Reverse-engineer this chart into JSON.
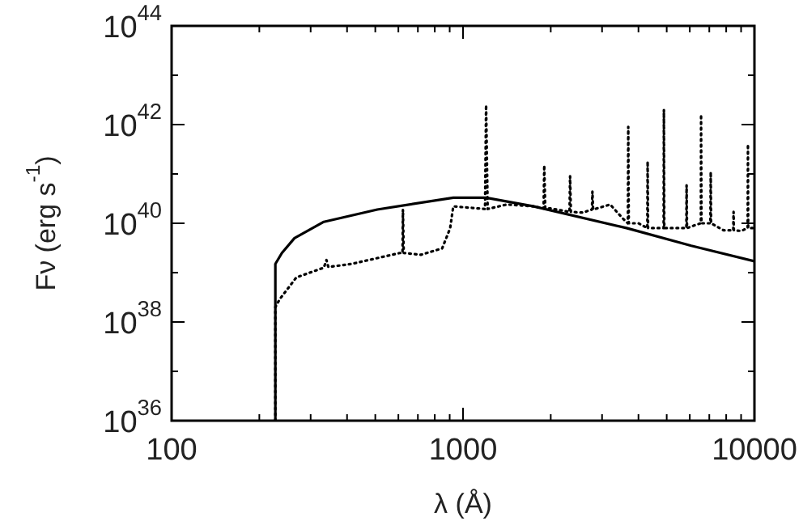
{
  "chart_data": {
    "type": "line",
    "xlabel": "λ (Å)",
    "ylabel": "Fν (erg s$^{-1}$)",
    "log": "xy",
    "marker": "none",
    "xlim": [
      100,
      10000
    ],
    "ylim": [
      1e+36,
      1e+44
    ],
    "xticks": [
      100,
      {
        "value": 200,
        "label": null
      },
      {
        "value": 300,
        "label": null
      },
      {
        "value": 400,
        "label": null
      },
      {
        "value": 500,
        "label": null
      },
      {
        "value": 600,
        "label": null
      },
      {
        "value": 700,
        "label": null
      },
      {
        "value": 800,
        "label": null
      },
      {
        "value": 900,
        "label": null
      },
      1000,
      {
        "value": 2000,
        "label": null
      },
      {
        "value": 3000,
        "label": null
      },
      {
        "value": 4000,
        "label": null
      },
      {
        "value": 5000,
        "label": null
      },
      {
        "value": 6000,
        "label": null
      },
      {
        "value": 7000,
        "label": null
      },
      {
        "value": 8000,
        "label": null
      },
      {
        "value": 9000,
        "label": null
      },
      10000
    ],
    "yticks": [
      {
        "value": 1e+36,
        "label": "10$^{36}$"
      },
      {
        "value": 1e+37,
        "label": null
      },
      {
        "value": 1e+38,
        "label": "10$^{38}$"
      },
      {
        "value": 1e+39,
        "label": null
      },
      {
        "value": 1e+40,
        "label": "10$^{40}$"
      },
      {
        "value": 1e+41,
        "label": null
      },
      {
        "value": 1e+42,
        "label": "10$^{42}$"
      },
      {
        "value": 1e+43,
        "label": null
      },
      {
        "value": 1e+44,
        "label": "10$^{44}$"
      }
    ],
    "series": [
      {
        "color": "#000000",
        "line_style": "solid",
        "x": [
          227,
          227,
          239,
          264,
          333,
          508,
          926,
          1200,
          1750,
          3640,
          6070,
          10000
        ],
        "values": [
          1e+36,
          1.5e+39,
          2.5e+39,
          5e+39,
          1.07e+40,
          1.9e+40,
          3.3e+40,
          3.3e+40,
          2.2e+40,
          8e+39,
          3.5e+39,
          1.7e+39
        ]
      },
      {
        "color": "#000000",
        "line_style": "dotted",
        "x": [
          227,
          227,
          235,
          268,
          333,
          340,
          345,
          414,
          607,
          620,
          622,
          626,
          717,
          848,
          903,
          926,
          1190,
          1200,
          1215,
          1413,
          1750,
          1890,
          1900,
          1915,
          1995,
          2320,
          2330,
          2345,
          2580,
          2770,
          2780,
          2795,
          3200,
          3530,
          3680,
          3690,
          3705,
          4000,
          4290,
          4300,
          4315,
          4580,
          4880,
          4890,
          4905,
          5350,
          5840,
          5850,
          5870,
          6200,
          6550,
          6560,
          6580,
          7060,
          7080,
          7100,
          7840,
          8460,
          8480,
          8500,
          9000,
          9480,
          9500,
          9520,
          10000
        ],
        "values": [
          1e+36,
          2e+38,
          2.9e+38,
          8e+38,
          1.26e+39,
          1.8e+39,
          1.3e+39,
          1.5e+39,
          2.5e+39,
          2.5e+39,
          1.9e+40,
          2.5e+39,
          2.3e+39,
          3.1e+39,
          7.9e+39,
          2.2e+40,
          1.95e+40,
          2.5e+42,
          1.95e+40,
          2.4e+40,
          2.2e+40,
          2e+40,
          1.5e+41,
          2e+40,
          2e+40,
          1.7e+40,
          9e+40,
          1.7e+40,
          1.65e+40,
          1.9e+40,
          4.4e+40,
          1.9e+40,
          2.4e+40,
          1.26e+40,
          1e+40,
          9e+41,
          1e+40,
          1e+40,
          8e+39,
          1.8e+41,
          8e+39,
          8e+39,
          8e+39,
          2e+42,
          8e+39,
          8e+39,
          8e+39,
          5.9e+40,
          8e+39,
          9e+39,
          1e+40,
          1.6e+42,
          1e+40,
          1e+40,
          1.1e+41,
          1e+40,
          7.2e+39,
          7.2e+39,
          1.7e+40,
          7.2e+39,
          7e+39,
          8e+39,
          4e+41,
          8e+39,
          8e+39
        ]
      }
    ]
  }
}
